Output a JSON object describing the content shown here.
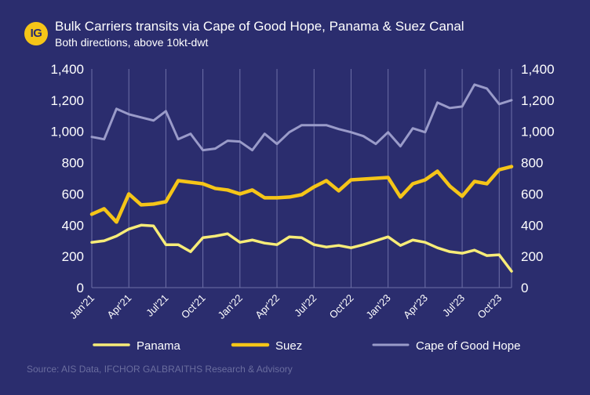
{
  "header": {
    "logo_text": "IG",
    "title": "Bulk Carriers transits via Cape of Good Hope, Panama & Suez Canal",
    "subtitle": "Both directions, above 10kt-dwt"
  },
  "footer": {
    "source": "Source: AIS Data, IFCHOR GALBRAITHS Research & Advisory"
  },
  "colors": {
    "background": "#2b2d6e",
    "panama": "#f7ec78",
    "suez": "#f5c518",
    "cape": "#9a9bc9",
    "grid": "#6e70a8"
  },
  "chart_data": {
    "type": "line",
    "title": "Bulk Carriers transits via Cape of Good Hope, Panama & Suez Canal",
    "subtitle": "Both directions, above 10kt-dwt",
    "x": [
      "Jan'21",
      "Feb'21",
      "Mar'21",
      "Apr'21",
      "May'21",
      "Jun'21",
      "Jul'21",
      "Aug'21",
      "Sep'21",
      "Oct'21",
      "Nov'21",
      "Dec'21",
      "Jan'22",
      "Feb'22",
      "Mar'22",
      "Apr'22",
      "May'22",
      "Jun'22",
      "Jul'22",
      "Aug'22",
      "Sep'22",
      "Oct'22",
      "Nov'22",
      "Dec'22",
      "Jan'23",
      "Feb'23",
      "Mar'23",
      "Apr'23",
      "May'23",
      "Jun'23",
      "Jul'23",
      "Aug'23",
      "Sep'23",
      "Oct'23",
      "Nov'23"
    ],
    "x_tick_labels": [
      "Jan'21",
      "Apr'21",
      "Jul'21",
      "Oct'21",
      "Jan'22",
      "Apr'22",
      "Jul'22",
      "Oct'22",
      "Jan'23",
      "Apr'23",
      "Jul'23",
      "Oct'23"
    ],
    "ylim": [
      0,
      1400
    ],
    "y_ticks": [
      "0",
      "200",
      "400",
      "600",
      "800",
      "1,000",
      "1,200",
      "1,400"
    ],
    "y_tick_values": [
      0,
      200,
      400,
      600,
      800,
      1000,
      1200,
      1400
    ],
    "grid": "vertical",
    "legend_position": "bottom",
    "series": [
      {
        "name": "Panama",
        "color_key": "panama",
        "values": [
          290,
          300,
          330,
          375,
          400,
          395,
          275,
          275,
          230,
          320,
          330,
          345,
          290,
          305,
          285,
          275,
          325,
          320,
          275,
          260,
          270,
          255,
          275,
          300,
          325,
          270,
          305,
          290,
          255,
          230,
          220,
          240,
          205,
          210,
          105
        ]
      },
      {
        "name": "Suez",
        "color_key": "suez",
        "values": [
          470,
          505,
          420,
          600,
          530,
          535,
          550,
          685,
          675,
          665,
          635,
          625,
          600,
          625,
          575,
          575,
          580,
          595,
          645,
          685,
          620,
          690,
          695,
          700,
          705,
          580,
          665,
          690,
          745,
          650,
          585,
          680,
          665,
          755,
          775
        ]
      },
      {
        "name": "Cape of Good Hope",
        "color_key": "cape",
        "values": [
          965,
          950,
          1145,
          1110,
          1090,
          1070,
          1130,
          950,
          985,
          880,
          890,
          940,
          935,
          880,
          985,
          920,
          995,
          1040,
          1040,
          1040,
          1015,
          995,
          970,
          920,
          995,
          905,
          1020,
          995,
          1185,
          1150,
          1160,
          1300,
          1275,
          1175,
          1200
        ]
      }
    ]
  }
}
